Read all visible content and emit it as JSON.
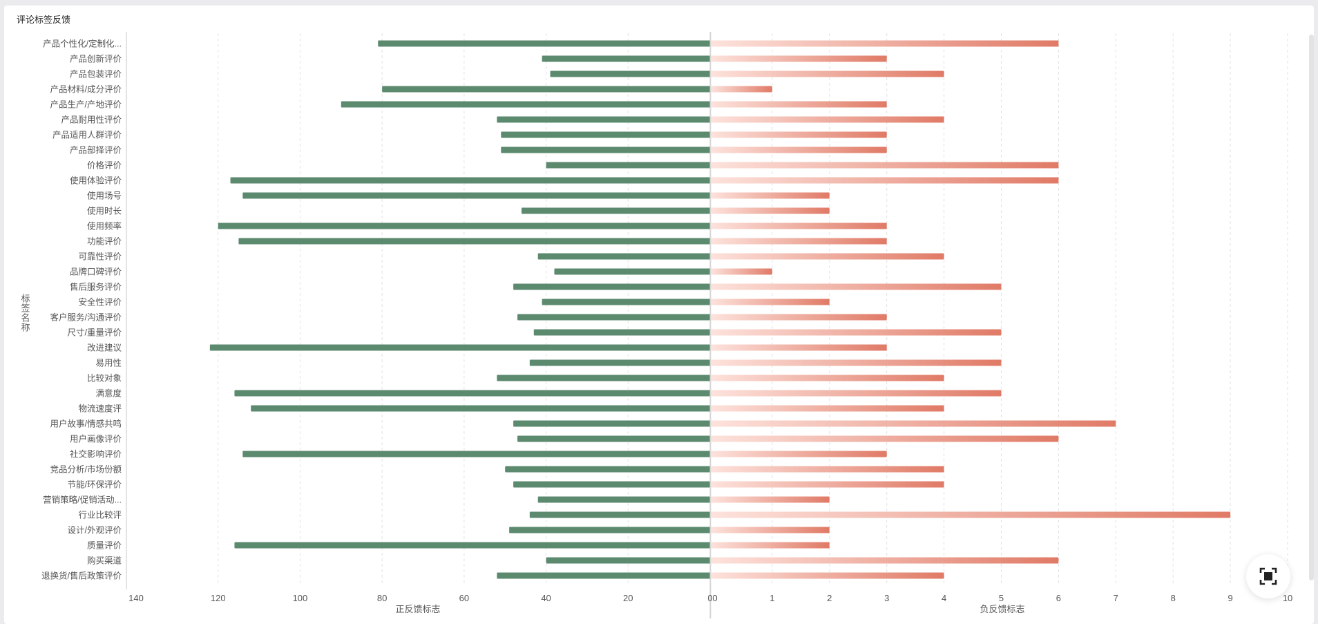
{
  "card": {
    "title": "评论标签反馈"
  },
  "chart_data": {
    "type": "bar",
    "orientation": "horizontal-diverging",
    "ylabel": "标签名称",
    "categories": [
      "产品个性化/定制化...",
      "产品创新评价",
      "产品包装评价",
      "产品材料/成分评价",
      "产品生产/产地评价",
      "产品耐用性评价",
      "产品适用人群评价",
      "产品部择评价",
      "价格评价",
      "使用体验评价",
      "使用场号",
      "使用时长",
      "使用频率",
      "功能评价",
      "可靠性评价",
      "品牌口碑评价",
      "售后服务评价",
      "安全性评价",
      "客户服务/沟通评价",
      "尺寸/重量评价",
      "改进建议",
      "易用性",
      "比较对象",
      "满意度",
      "物流速度评",
      "用户故事/情感共鸣",
      "用户画像评价",
      "社交影响评价",
      "竞品分析/市场份额",
      "节能/环保评价",
      "营销策略/促销活动...",
      "行业比较评",
      "设计/外观评价",
      "质量评价",
      "购买渠道",
      "退换货/售后政策评价"
    ],
    "series": [
      {
        "name": "正反馈标志",
        "color": "#5c8a6f",
        "xlim": [
          140,
          0
        ],
        "ticks": [
          140,
          120,
          100,
          80,
          60,
          40,
          20,
          0
        ],
        "values": [
          81,
          41,
          39,
          80,
          90,
          52,
          51,
          51,
          40,
          117,
          114,
          46,
          120,
          115,
          42,
          38,
          48,
          41,
          47,
          43,
          122,
          44,
          52,
          116,
          112,
          48,
          47,
          114,
          50,
          48,
          42,
          44,
          49,
          116,
          40,
          52
        ]
      },
      {
        "name": "负反馈标志",
        "color": "#e07a66",
        "color_start": "#fde2dc",
        "xlim": [
          0,
          10
        ],
        "ticks": [
          0,
          1,
          2,
          3,
          4,
          5,
          6,
          7,
          8,
          9,
          10
        ],
        "values": [
          6,
          3,
          4,
          1,
          3,
          4,
          3,
          3,
          6,
          6,
          2,
          2,
          3,
          3,
          4,
          1,
          5,
          2,
          3,
          5,
          3,
          5,
          4,
          5,
          4,
          7,
          6,
          3,
          4,
          4,
          2,
          9,
          2,
          2,
          6,
          4
        ]
      }
    ],
    "grid": true
  },
  "icons": {
    "fullscreen": "fullscreen-icon"
  }
}
